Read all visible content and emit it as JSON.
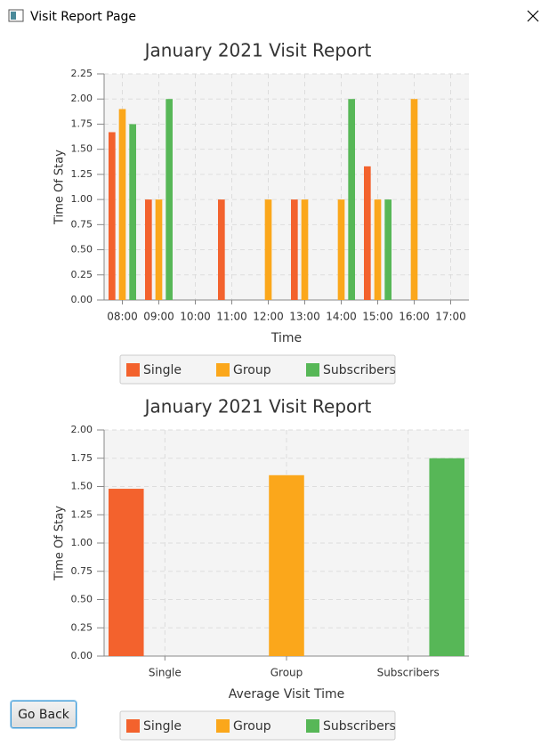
{
  "window": {
    "title": "Visit Report Page"
  },
  "button": {
    "label": "Go Back"
  },
  "chart_data": [
    {
      "type": "bar",
      "title": "January 2021 Visit Report",
      "x_label": "Time",
      "y_label": "Time Of Stay",
      "categories": [
        "08:00",
        "09:00",
        "10:00",
        "11:00",
        "12:00",
        "13:00",
        "14:00",
        "15:00",
        "16:00",
        "17:00"
      ],
      "series": [
        {
          "name": "Single",
          "color": "#f3622d",
          "values": [
            1.67,
            1.0,
            null,
            1.0,
            null,
            1.0,
            null,
            1.33,
            null,
            null
          ]
        },
        {
          "name": "Group",
          "color": "#fba71b",
          "values": [
            1.9,
            1.0,
            null,
            null,
            1.0,
            1.0,
            1.0,
            1.0,
            2.0,
            null
          ]
        },
        {
          "name": "Subscribers",
          "color": "#57b757",
          "values": [
            1.75,
            2.0,
            null,
            null,
            null,
            null,
            2.0,
            1.0,
            null,
            null
          ]
        }
      ],
      "ylim": [
        0,
        2.25
      ],
      "yticks": [
        {
          "value": 0,
          "label": "0.00"
        },
        {
          "value": 0.25,
          "label": "0.25"
        },
        {
          "value": 0.5,
          "label": "0.50"
        },
        {
          "value": 0.75,
          "label": "0.75"
        },
        {
          "value": 1,
          "label": "1.00"
        },
        {
          "value": 1.25,
          "label": "1.25"
        },
        {
          "value": 1.5,
          "label": "1.50"
        },
        {
          "value": 1.75,
          "label": "1.75"
        },
        {
          "value": 2,
          "label": "2.00"
        },
        {
          "value": 2.25,
          "label": "2.25"
        }
      ],
      "grid": true,
      "legend": "bottom"
    },
    {
      "type": "bar",
      "title": "January 2021 Visit Report",
      "x_label": "Average Visit Time",
      "y_label": "Time Of Stay",
      "categories": [
        "Single",
        "Group",
        "Subscribers"
      ],
      "series": [
        {
          "name": "Single",
          "color": "#f3622d",
          "values": [
            1.48,
            null,
            null
          ]
        },
        {
          "name": "Group",
          "color": "#fba71b",
          "values": [
            null,
            1.6,
            null
          ]
        },
        {
          "name": "Subscribers",
          "color": "#57b757",
          "values": [
            null,
            null,
            1.75
          ]
        }
      ],
      "ylim": [
        0,
        2
      ],
      "yticks": [
        {
          "value": 0,
          "label": "0.00"
        },
        {
          "value": 0.25,
          "label": "0.25"
        },
        {
          "value": 0.5,
          "label": "0.50"
        },
        {
          "value": 0.75,
          "label": "0.75"
        },
        {
          "value": 1,
          "label": "1.00"
        },
        {
          "value": 1.25,
          "label": "1.25"
        },
        {
          "value": 1.5,
          "label": "1.50"
        },
        {
          "value": 1.75,
          "label": "1.75"
        },
        {
          "value": 2,
          "label": "2.00"
        }
      ],
      "grid": true,
      "legend": "bottom"
    }
  ]
}
